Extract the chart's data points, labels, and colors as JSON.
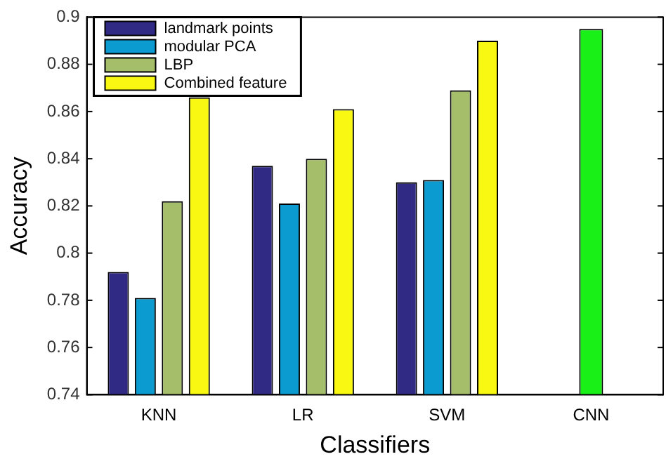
{
  "chart_data": {
    "type": "bar",
    "xlabel": "Classifiers",
    "ylabel": "Accuracy",
    "categories": [
      "KNN",
      "LR",
      "SVM",
      "CNN"
    ],
    "series": [
      {
        "name": "landmark points",
        "color": "#312a84",
        "values": [
          0.792,
          0.837,
          0.83,
          null
        ]
      },
      {
        "name": "modular PCA",
        "color": "#0b9bd0",
        "values": [
          0.781,
          0.821,
          0.831,
          null
        ]
      },
      {
        "name": "LBP",
        "color": "#a5be6a",
        "values": [
          0.822,
          0.84,
          0.869,
          null
        ]
      },
      {
        "name": "Combined feature",
        "color": "#f8f812",
        "values": [
          0.866,
          0.861,
          0.89,
          null
        ]
      },
      {
        "color": "#18f018",
        "values": [
          null,
          null,
          null,
          0.895
        ]
      }
    ],
    "ylim": [
      0.74,
      0.9
    ],
    "yticks": [
      0.74,
      0.76,
      0.78,
      0.8,
      0.82,
      0.84,
      0.86,
      0.88,
      0.9
    ],
    "grid": false,
    "legend": "top left"
  }
}
